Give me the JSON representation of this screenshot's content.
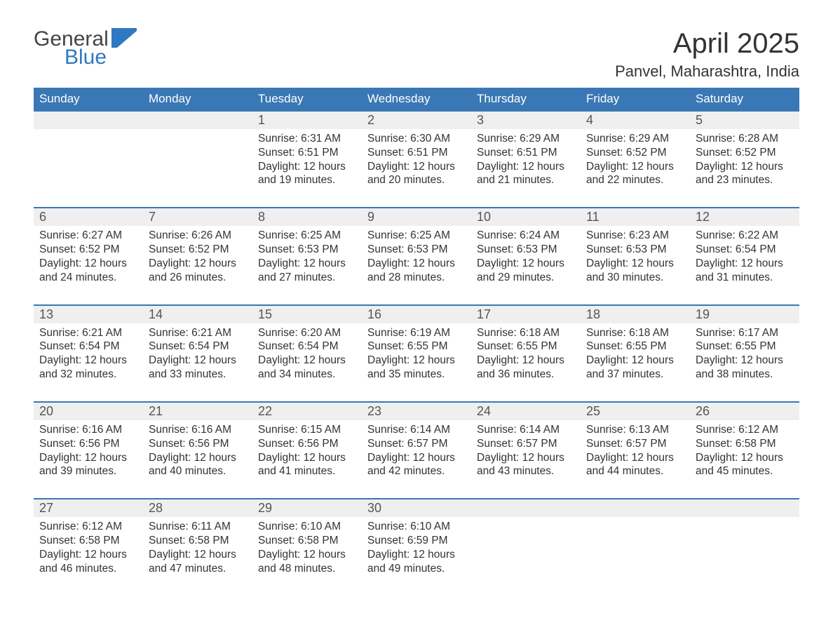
{
  "logo": {
    "word1": "General",
    "word2": "Blue"
  },
  "header": {
    "title": "April 2025",
    "location": "Panvel, Maharashtra, India"
  },
  "colors": {
    "header_bg": "#3a78b5",
    "header_text": "#ffffff",
    "daynum_bg": "#efefef",
    "daynum_border": "#3a78b5",
    "daynum_text": "#555555",
    "body_text": "#333333",
    "logo_gray": "#444444",
    "logo_blue": "#2f79c2",
    "page_bg": "#ffffff"
  },
  "typography": {
    "title_fontsize": 40,
    "location_fontsize": 22,
    "header_fontsize": 17,
    "daynum_fontsize": 18,
    "cell_fontsize": 15.5,
    "font_family": "Segoe UI / Arial"
  },
  "calendar": {
    "type": "table",
    "columns": [
      "Sunday",
      "Monday",
      "Tuesday",
      "Wednesday",
      "Thursday",
      "Friday",
      "Saturday"
    ],
    "weeks": [
      [
        null,
        null,
        {
          "day": "1",
          "sunrise": "Sunrise: 6:31 AM",
          "sunset": "Sunset: 6:51 PM",
          "daylight1": "Daylight: 12 hours",
          "daylight2": "and 19 minutes."
        },
        {
          "day": "2",
          "sunrise": "Sunrise: 6:30 AM",
          "sunset": "Sunset: 6:51 PM",
          "daylight1": "Daylight: 12 hours",
          "daylight2": "and 20 minutes."
        },
        {
          "day": "3",
          "sunrise": "Sunrise: 6:29 AM",
          "sunset": "Sunset: 6:51 PM",
          "daylight1": "Daylight: 12 hours",
          "daylight2": "and 21 minutes."
        },
        {
          "day": "4",
          "sunrise": "Sunrise: 6:29 AM",
          "sunset": "Sunset: 6:52 PM",
          "daylight1": "Daylight: 12 hours",
          "daylight2": "and 22 minutes."
        },
        {
          "day": "5",
          "sunrise": "Sunrise: 6:28 AM",
          "sunset": "Sunset: 6:52 PM",
          "daylight1": "Daylight: 12 hours",
          "daylight2": "and 23 minutes."
        }
      ],
      [
        {
          "day": "6",
          "sunrise": "Sunrise: 6:27 AM",
          "sunset": "Sunset: 6:52 PM",
          "daylight1": "Daylight: 12 hours",
          "daylight2": "and 24 minutes."
        },
        {
          "day": "7",
          "sunrise": "Sunrise: 6:26 AM",
          "sunset": "Sunset: 6:52 PM",
          "daylight1": "Daylight: 12 hours",
          "daylight2": "and 26 minutes."
        },
        {
          "day": "8",
          "sunrise": "Sunrise: 6:25 AM",
          "sunset": "Sunset: 6:53 PM",
          "daylight1": "Daylight: 12 hours",
          "daylight2": "and 27 minutes."
        },
        {
          "day": "9",
          "sunrise": "Sunrise: 6:25 AM",
          "sunset": "Sunset: 6:53 PM",
          "daylight1": "Daylight: 12 hours",
          "daylight2": "and 28 minutes."
        },
        {
          "day": "10",
          "sunrise": "Sunrise: 6:24 AM",
          "sunset": "Sunset: 6:53 PM",
          "daylight1": "Daylight: 12 hours",
          "daylight2": "and 29 minutes."
        },
        {
          "day": "11",
          "sunrise": "Sunrise: 6:23 AM",
          "sunset": "Sunset: 6:53 PM",
          "daylight1": "Daylight: 12 hours",
          "daylight2": "and 30 minutes."
        },
        {
          "day": "12",
          "sunrise": "Sunrise: 6:22 AM",
          "sunset": "Sunset: 6:54 PM",
          "daylight1": "Daylight: 12 hours",
          "daylight2": "and 31 minutes."
        }
      ],
      [
        {
          "day": "13",
          "sunrise": "Sunrise: 6:21 AM",
          "sunset": "Sunset: 6:54 PM",
          "daylight1": "Daylight: 12 hours",
          "daylight2": "and 32 minutes."
        },
        {
          "day": "14",
          "sunrise": "Sunrise: 6:21 AM",
          "sunset": "Sunset: 6:54 PM",
          "daylight1": "Daylight: 12 hours",
          "daylight2": "and 33 minutes."
        },
        {
          "day": "15",
          "sunrise": "Sunrise: 6:20 AM",
          "sunset": "Sunset: 6:54 PM",
          "daylight1": "Daylight: 12 hours",
          "daylight2": "and 34 minutes."
        },
        {
          "day": "16",
          "sunrise": "Sunrise: 6:19 AM",
          "sunset": "Sunset: 6:55 PM",
          "daylight1": "Daylight: 12 hours",
          "daylight2": "and 35 minutes."
        },
        {
          "day": "17",
          "sunrise": "Sunrise: 6:18 AM",
          "sunset": "Sunset: 6:55 PM",
          "daylight1": "Daylight: 12 hours",
          "daylight2": "and 36 minutes."
        },
        {
          "day": "18",
          "sunrise": "Sunrise: 6:18 AM",
          "sunset": "Sunset: 6:55 PM",
          "daylight1": "Daylight: 12 hours",
          "daylight2": "and 37 minutes."
        },
        {
          "day": "19",
          "sunrise": "Sunrise: 6:17 AM",
          "sunset": "Sunset: 6:55 PM",
          "daylight1": "Daylight: 12 hours",
          "daylight2": "and 38 minutes."
        }
      ],
      [
        {
          "day": "20",
          "sunrise": "Sunrise: 6:16 AM",
          "sunset": "Sunset: 6:56 PM",
          "daylight1": "Daylight: 12 hours",
          "daylight2": "and 39 minutes."
        },
        {
          "day": "21",
          "sunrise": "Sunrise: 6:16 AM",
          "sunset": "Sunset: 6:56 PM",
          "daylight1": "Daylight: 12 hours",
          "daylight2": "and 40 minutes."
        },
        {
          "day": "22",
          "sunrise": "Sunrise: 6:15 AM",
          "sunset": "Sunset: 6:56 PM",
          "daylight1": "Daylight: 12 hours",
          "daylight2": "and 41 minutes."
        },
        {
          "day": "23",
          "sunrise": "Sunrise: 6:14 AM",
          "sunset": "Sunset: 6:57 PM",
          "daylight1": "Daylight: 12 hours",
          "daylight2": "and 42 minutes."
        },
        {
          "day": "24",
          "sunrise": "Sunrise: 6:14 AM",
          "sunset": "Sunset: 6:57 PM",
          "daylight1": "Daylight: 12 hours",
          "daylight2": "and 43 minutes."
        },
        {
          "day": "25",
          "sunrise": "Sunrise: 6:13 AM",
          "sunset": "Sunset: 6:57 PM",
          "daylight1": "Daylight: 12 hours",
          "daylight2": "and 44 minutes."
        },
        {
          "day": "26",
          "sunrise": "Sunrise: 6:12 AM",
          "sunset": "Sunset: 6:58 PM",
          "daylight1": "Daylight: 12 hours",
          "daylight2": "and 45 minutes."
        }
      ],
      [
        {
          "day": "27",
          "sunrise": "Sunrise: 6:12 AM",
          "sunset": "Sunset: 6:58 PM",
          "daylight1": "Daylight: 12 hours",
          "daylight2": "and 46 minutes."
        },
        {
          "day": "28",
          "sunrise": "Sunrise: 6:11 AM",
          "sunset": "Sunset: 6:58 PM",
          "daylight1": "Daylight: 12 hours",
          "daylight2": "and 47 minutes."
        },
        {
          "day": "29",
          "sunrise": "Sunrise: 6:10 AM",
          "sunset": "Sunset: 6:58 PM",
          "daylight1": "Daylight: 12 hours",
          "daylight2": "and 48 minutes."
        },
        {
          "day": "30",
          "sunrise": "Sunrise: 6:10 AM",
          "sunset": "Sunset: 6:59 PM",
          "daylight1": "Daylight: 12 hours",
          "daylight2": "and 49 minutes."
        },
        null,
        null,
        null
      ]
    ]
  }
}
